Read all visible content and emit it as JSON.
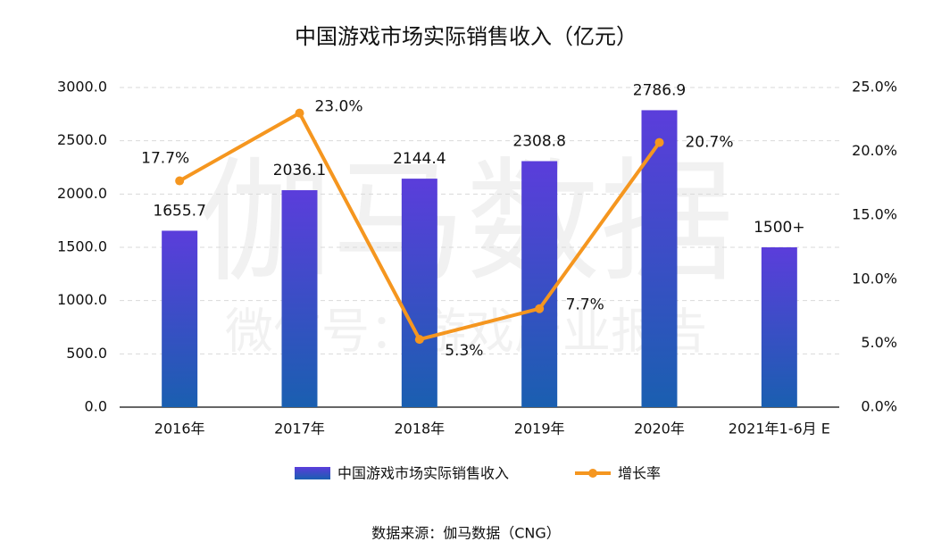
{
  "chart_data": {
    "type": "bar_line",
    "title": "中国游戏市场实际销售收入（亿元）",
    "watermark": "伽马数据",
    "watermark_sub": "微信号：游戏产业报告",
    "source": "数据来源：伽马数据（CNG）",
    "categories": [
      "2016年",
      "2017年",
      "2018年",
      "2019年",
      "2020年",
      "2021年1-6月 E"
    ],
    "series": [
      {
        "name": "中国游戏市场实际销售收入",
        "type": "bar",
        "color": "#5b3ddb",
        "color_bottom": "#1a5fb0",
        "values": [
          1655.7,
          2036.1,
          2144.4,
          2308.8,
          2786.9,
          1500
        ],
        "value_labels": [
          "1655.7",
          "2036.1",
          "2144.4",
          "2308.8",
          "2786.9",
          "1500+"
        ]
      },
      {
        "name": "增长率",
        "type": "line",
        "axis": "y2",
        "color": "#f5961f",
        "values": [
          17.7,
          23.0,
          5.3,
          7.7,
          20.7,
          null
        ],
        "value_labels": [
          "17.7%",
          "23.0%",
          "5.3%",
          "7.7%",
          "20.7%",
          null
        ]
      }
    ],
    "ylim": [
      0,
      3000
    ],
    "yticks": [
      {
        "value": 0,
        "label": "0.0"
      },
      {
        "value": 500,
        "label": "500.0"
      },
      {
        "value": 1000,
        "label": "1000.0"
      },
      {
        "value": 1500,
        "label": "1500.0"
      },
      {
        "value": 2000,
        "label": "2000.0"
      },
      {
        "value": 2500,
        "label": "2500.0"
      },
      {
        "value": 3000,
        "label": "3000.0"
      }
    ],
    "y2lim": [
      0,
      25
    ],
    "y2ticks": [
      {
        "value": 0,
        "label": "0.0%"
      },
      {
        "value": 5,
        "label": "5.0%"
      },
      {
        "value": 10,
        "label": "10.0%"
      },
      {
        "value": 15,
        "label": "15.0%"
      },
      {
        "value": 20,
        "label": "20.0%"
      },
      {
        "value": 25,
        "label": "25.0%"
      }
    ],
    "grid": true,
    "legend": "bottom"
  }
}
